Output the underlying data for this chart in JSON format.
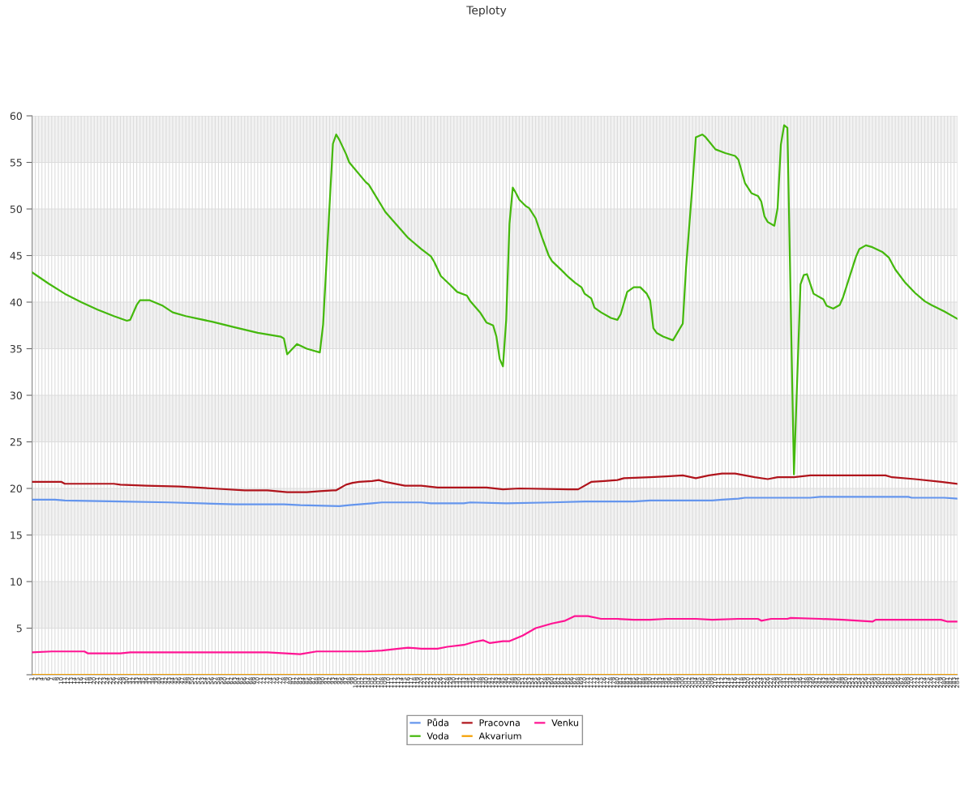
{
  "chart_data": {
    "type": "line",
    "title": "Teploty",
    "xlim": [
      1,
      284
    ],
    "ylim": [
      0,
      60
    ],
    "yticks": [
      {
        "value": 0,
        "label": null
      },
      5,
      10,
      15,
      20,
      25,
      30,
      35,
      40,
      45,
      50,
      55,
      60
    ],
    "xticks": [
      1,
      2,
      3,
      4,
      5,
      6,
      7,
      8,
      9,
      10,
      11,
      12,
      13,
      14,
      15,
      16,
      17,
      18,
      19,
      20,
      21,
      22,
      23,
      24,
      25,
      26,
      27,
      28,
      29,
      30,
      31,
      32,
      33,
      34,
      35,
      36,
      37,
      38,
      39,
      40,
      41,
      42,
      43,
      44,
      45,
      46,
      47,
      48,
      49,
      50,
      51,
      52,
      53,
      54,
      55,
      56,
      57,
      58,
      59,
      60,
      61,
      62,
      63,
      64,
      65,
      66,
      67,
      68,
      69,
      70,
      71,
      72,
      73,
      74,
      75,
      76,
      77,
      78,
      79,
      80,
      81,
      82,
      83,
      84,
      85,
      86,
      87,
      88,
      89,
      90,
      91,
      92,
      93,
      94,
      95,
      96,
      97,
      98,
      99,
      100,
      101,
      102,
      103,
      104,
      105,
      106,
      107,
      108,
      109,
      110,
      111,
      112,
      113,
      114,
      115,
      116,
      117,
      118,
      119,
      120,
      121,
      122,
      123,
      124,
      125,
      126,
      127,
      128,
      129,
      130,
      131,
      132,
      133,
      134,
      135,
      136,
      137,
      138,
      139,
      140,
      141,
      142,
      143,
      144,
      145,
      146,
      147,
      148,
      149,
      150,
      151,
      152,
      153,
      154,
      155,
      156,
      157,
      158,
      159,
      160,
      161,
      162,
      163,
      164,
      165,
      166,
      167,
      168,
      169,
      170,
      171,
      172,
      173,
      174,
      175,
      176,
      177,
      178,
      179,
      180,
      181,
      182,
      183,
      184,
      185,
      186,
      187,
      188,
      189,
      190,
      191,
      192,
      193,
      194,
      195,
      196,
      197,
      198,
      199,
      200,
      201,
      202,
      203,
      204,
      205,
      206,
      207,
      208,
      209,
      210,
      211,
      212,
      213,
      214,
      215,
      216,
      217,
      218,
      219,
      220,
      221,
      222,
      223,
      224,
      225,
      226,
      227,
      228,
      229,
      230,
      231,
      232,
      233,
      234,
      235,
      236,
      237,
      238,
      239,
      240,
      241,
      242,
      243,
      244,
      245,
      246,
      247,
      248,
      249,
      250,
      251,
      252,
      253,
      254,
      255,
      256,
      257,
      258,
      259,
      260,
      261,
      262,
      263,
      264,
      265,
      266,
      267,
      268,
      269,
      270,
      271,
      272,
      273,
      274,
      275,
      276,
      277,
      278,
      279,
      280,
      281,
      282,
      283,
      284
    ],
    "grid": true,
    "legend": "bottom",
    "marker": "none",
    "line_style": "solid",
    "series": [
      {
        "name": "Půda",
        "color": "#6495ed",
        "x": [
          1,
          8,
          11,
          28,
          43,
          63,
          78,
          83,
          95,
          98,
          105,
          108,
          120,
          123,
          133,
          135,
          146,
          160,
          170,
          185,
          190,
          209,
          212,
          217,
          219,
          239,
          242,
          269,
          270,
          280,
          284
        ],
        "values": [
          18.8,
          18.8,
          18.7,
          18.6,
          18.5,
          18.3,
          18.3,
          18.2,
          18.1,
          18.2,
          18.4,
          18.5,
          18.5,
          18.4,
          18.4,
          18.5,
          18.4,
          18.5,
          18.6,
          18.6,
          18.7,
          18.7,
          18.8,
          18.9,
          19.0,
          19.0,
          19.1,
          19.1,
          19.0,
          19.0,
          18.9
        ]
      },
      {
        "name": "Voda",
        "color": "#44b80c",
        "x": [
          1,
          6,
          11,
          16,
          21,
          26,
          30,
          31,
          33,
          34,
          37,
          41,
          44,
          48,
          56,
          63,
          70,
          77,
          78,
          79,
          82,
          85,
          89,
          90,
          93,
          94,
          95,
          97,
          98,
          103,
          104,
          109,
          111,
          114,
          116,
          120,
          123,
          124,
          126,
          129,
          131,
          134,
          135,
          138,
          140,
          142,
          143,
          144,
          145,
          146,
          147,
          148,
          149,
          150,
          152,
          153,
          155,
          157,
          159,
          160,
          163,
          165,
          167,
          169,
          170,
          172,
          173,
          175,
          178,
          180,
          181,
          183,
          185,
          187,
          189,
          190,
          191,
          192,
          194,
          197,
          200,
          201,
          203,
          204,
          206,
          207,
          210,
          213,
          216,
          217,
          219,
          221,
          223,
          224,
          225,
          226,
          228,
          229,
          230,
          231,
          232,
          234,
          236,
          237,
          238,
          240,
          243,
          244,
          246,
          248,
          249,
          251,
          253,
          254,
          256,
          258,
          261,
          263,
          265,
          268,
          271,
          274,
          276,
          280,
          283,
          284
        ],
        "values": [
          43.2,
          42.0,
          40.9,
          40.0,
          39.2,
          38.5,
          38.0,
          38.1,
          39.7,
          40.2,
          40.2,
          39.6,
          38.9,
          38.5,
          37.9,
          37.3,
          36.7,
          36.3,
          36.1,
          34.4,
          35.5,
          35.0,
          34.6,
          37.6,
          57.0,
          58.0,
          57.4,
          55.9,
          55.0,
          52.9,
          52.6,
          49.7,
          48.9,
          47.7,
          46.9,
          45.7,
          44.9,
          44.3,
          42.8,
          41.8,
          41.1,
          40.7,
          40.1,
          38.9,
          37.8,
          37.5,
          36.3,
          33.9,
          33.1,
          38.1,
          48.4,
          52.3,
          51.7,
          51.0,
          50.3,
          50.1,
          49.0,
          46.9,
          45.0,
          44.4,
          43.4,
          42.7,
          42.1,
          41.6,
          40.9,
          40.4,
          39.4,
          38.9,
          38.3,
          38.1,
          38.7,
          41.1,
          41.6,
          41.6,
          40.9,
          40.2,
          37.2,
          36.7,
          36.3,
          35.9,
          37.7,
          43.7,
          52.8,
          57.7,
          58.0,
          57.7,
          56.4,
          56.0,
          55.7,
          55.3,
          52.8,
          51.7,
          51.4,
          50.8,
          49.2,
          48.6,
          48.2,
          50.1,
          56.9,
          59.0,
          58.7,
          21.5,
          41.9,
          42.9,
          43.0,
          40.9,
          40.3,
          39.6,
          39.3,
          39.7,
          40.5,
          42.7,
          44.9,
          45.7,
          46.1,
          45.9,
          45.4,
          44.8,
          43.5,
          42.1,
          41.0,
          40.1,
          39.7,
          39.0,
          38.4,
          38.2
        ]
      },
      {
        "name": "Pracovna",
        "color": "#b0141c",
        "x": [
          1,
          10,
          11,
          26,
          28,
          36,
          46,
          56,
          66,
          73,
          79,
          85,
          89,
          93,
          94,
          95,
          97,
          99,
          101,
          105,
          107,
          109,
          115,
          120,
          125,
          140,
          145,
          150,
          165,
          168,
          172,
          176,
          180,
          182,
          190,
          195,
          200,
          204,
          208,
          212,
          216,
          222,
          226,
          229,
          234,
          239,
          254,
          262,
          264,
          271,
          279,
          284
        ],
        "values": [
          20.7,
          20.7,
          20.5,
          20.5,
          20.4,
          20.3,
          20.2,
          20.0,
          19.8,
          19.8,
          19.6,
          19.6,
          19.7,
          19.8,
          19.8,
          20.0,
          20.4,
          20.6,
          20.7,
          20.8,
          20.9,
          20.7,
          20.3,
          20.3,
          20.1,
          20.1,
          19.9,
          20.0,
          19.9,
          19.9,
          20.7,
          20.8,
          20.9,
          21.1,
          21.2,
          21.3,
          21.4,
          21.1,
          21.4,
          21.6,
          21.6,
          21.2,
          21.0,
          21.2,
          21.2,
          21.4,
          21.4,
          21.4,
          21.2,
          21.0,
          20.7,
          20.5
        ]
      },
      {
        "name": "Akvarium",
        "color": "#f5a000",
        "x": [
          1,
          284
        ],
        "values": [
          0,
          0
        ]
      },
      {
        "name": "Venku",
        "color": "#ff1493",
        "x": [
          1,
          7,
          17,
          18,
          28,
          31,
          73,
          83,
          88,
          103,
          108,
          113,
          116,
          120,
          125,
          128,
          133,
          136,
          139,
          141,
          145,
          147,
          151,
          155,
          160,
          164,
          167,
          171,
          175,
          180,
          185,
          190,
          195,
          204,
          209,
          217,
          223,
          224,
          227,
          232,
          233,
          242,
          249,
          254,
          258,
          259,
          279,
          281,
          284
        ],
        "values": [
          2.4,
          2.5,
          2.5,
          2.3,
          2.3,
          2.4,
          2.4,
          2.2,
          2.5,
          2.5,
          2.6,
          2.8,
          2.9,
          2.8,
          2.8,
          3.0,
          3.2,
          3.5,
          3.7,
          3.4,
          3.6,
          3.6,
          4.2,
          5.0,
          5.5,
          5.8,
          6.3,
          6.3,
          6.0,
          6.0,
          5.9,
          5.9,
          6.0,
          6.0,
          5.9,
          6.0,
          6.0,
          5.8,
          6.0,
          6.0,
          6.1,
          6.0,
          5.9,
          5.8,
          5.7,
          5.9,
          5.9,
          5.7,
          5.7
        ]
      }
    ]
  }
}
